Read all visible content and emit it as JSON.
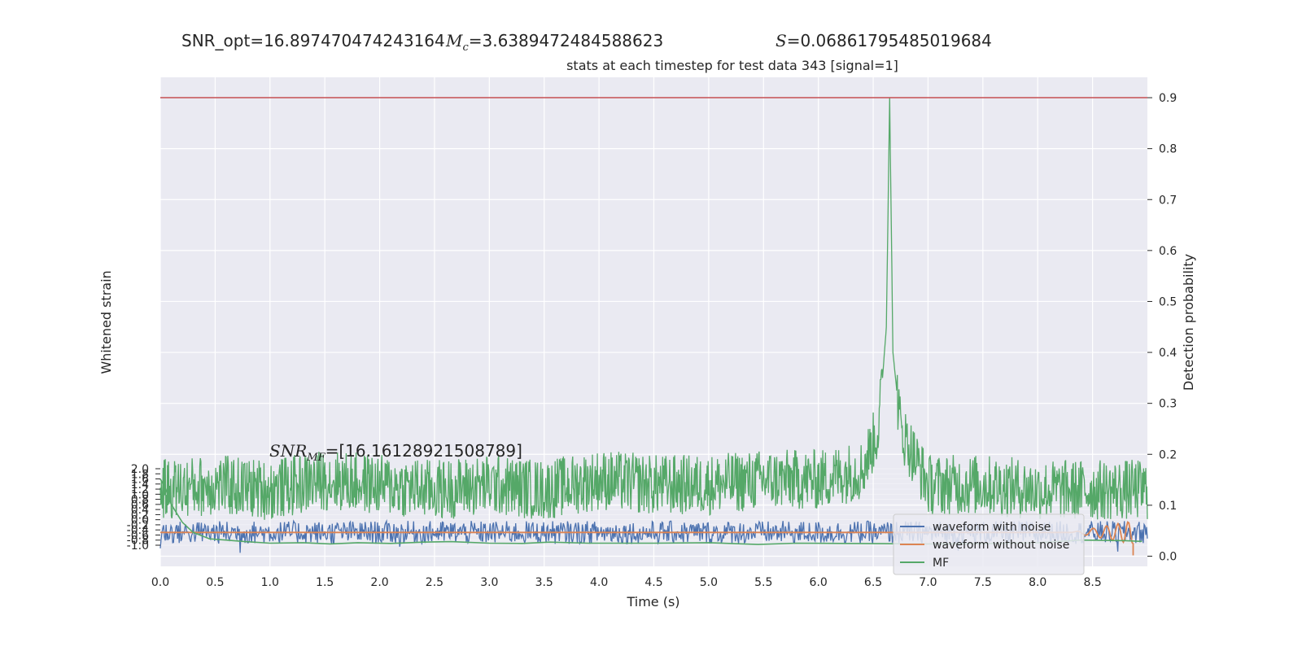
{
  "header": {
    "snr_opt": "SNR_opt=16.897470474243164",
    "mc_symbol": "M",
    "mc_sub": "c",
    "mc_value": "=3.6389472484588623",
    "s_symbol": "S",
    "s_value": "=0.06861795485019684"
  },
  "chart_data": {
    "type": "line",
    "title": "stats at each timestep for test data 343 [signal=1]",
    "xlabel": "Time (s)",
    "ylabel_left": "Whitened strain",
    "ylabel_right": "Detection probability",
    "xlim": [
      0.0,
      9.0
    ],
    "ylim_right": [
      -0.02,
      0.94
    ],
    "ylim_left": [
      -1.0,
      2.0
    ],
    "x_ticks": [
      "0.0",
      "0.5",
      "1.0",
      "1.5",
      "2.0",
      "2.5",
      "3.0",
      "3.5",
      "4.0",
      "4.5",
      "5.0",
      "5.5",
      "6.0",
      "6.5",
      "7.0",
      "7.5",
      "8.0",
      "8.5"
    ],
    "y_ticks_right": [
      "0.0",
      "0.1",
      "0.2",
      "0.3",
      "0.4",
      "0.5",
      "0.6",
      "0.7",
      "0.8",
      "0.9"
    ],
    "y_ticks_left": [
      "2.0",
      "1.8",
      "1.6",
      "1.4",
      "1.2",
      "1.0",
      "0.8",
      "0.6",
      "0.4",
      "0.2",
      "0.0",
      "-0.2",
      "-0.4",
      "-0.6",
      "-0.8",
      "-1.0"
    ],
    "threshold": 0.9,
    "grid": true,
    "legend_position": "lower-right",
    "annotation": {
      "label_base": "SNR",
      "label_sub": "MF",
      "value": "=[16.16128921508789]"
    },
    "series": [
      {
        "name": "waveform with noise",
        "color": "#4c72b0",
        "axis": "left"
      },
      {
        "name": "waveform without noise",
        "color": "#dd8452",
        "axis": "left"
      },
      {
        "name": "MF",
        "color": "#55a868",
        "axis": "left"
      },
      {
        "color": "#55a868",
        "axis": "right",
        "x": [
          0.0,
          0.5,
          1.0,
          1.5,
          2.0,
          2.5,
          3.0,
          3.5,
          4.0,
          4.5,
          5.0,
          5.5,
          6.0,
          6.4,
          6.55,
          6.62,
          6.65,
          6.68,
          6.75,
          7.0,
          7.5,
          8.0,
          8.5,
          9.0
        ],
        "y": [
          0.13,
          0.14,
          0.13,
          0.15,
          0.14,
          0.13,
          0.14,
          0.13,
          0.15,
          0.14,
          0.14,
          0.15,
          0.15,
          0.17,
          0.25,
          0.45,
          0.9,
          0.4,
          0.25,
          0.14,
          0.14,
          0.13,
          0.13,
          0.13
        ]
      },
      {
        "color": "#c44e52",
        "axis": "right"
      }
    ],
    "mf_left_values": {
      "x": [
        0.0,
        0.05,
        0.1,
        0.2,
        0.3,
        0.45,
        0.6,
        0.75,
        1.0,
        1.3,
        1.55,
        1.8,
        2.1,
        2.4,
        2.65,
        3.0,
        3.3,
        3.55,
        3.9,
        4.5,
        5.0,
        5.45,
        5.8,
        6.2,
        6.6,
        7.0,
        7.5,
        8.0,
        8.4,
        8.8,
        8.95
      ],
      "y": [
        1.6,
        1.2,
        0.6,
        -0.1,
        -0.5,
        -0.75,
        -0.8,
        -0.85,
        -0.92,
        -0.9,
        -0.95,
        -0.9,
        -0.93,
        -0.88,
        -0.86,
        -0.92,
        -0.93,
        -0.88,
        -0.92,
        -0.92,
        -0.9,
        -0.97,
        -0.92,
        -0.93,
        -0.94,
        -0.95,
        -0.94,
        -0.9,
        -0.8,
        -0.82,
        -0.85
      ]
    }
  }
}
